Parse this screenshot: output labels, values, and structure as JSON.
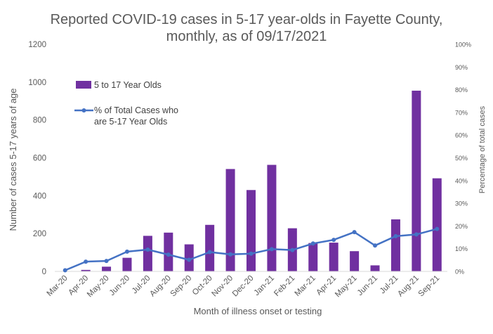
{
  "chart_data": {
    "type": "bar",
    "title_line1": "Reported COVID-19 cases in 5-17 year-olds in Fayette County,",
    "title_line2": "monthly, as of 09/17/2021",
    "xlabel": "Month of illness onset or testing",
    "ylabel": "Number of cases 5-17 years of age",
    "y2label": "Percentage of total cases",
    "categories": [
      "Mar-20",
      "Apr-20",
      "May-20",
      "Jun-20",
      "Jul-20",
      "Aug-20",
      "Sep-20",
      "Oct-20",
      "Nov-20",
      "Dec-20",
      "Jan-21",
      "Feb-21",
      "Mar-21",
      "Apr-21",
      "May-21",
      "Jun-21",
      "Jul-21",
      "Aug-21",
      "Sep-21"
    ],
    "ylim": [
      0,
      1200
    ],
    "yticks": [
      "0",
      "200",
      "400",
      "600",
      "800",
      "1000",
      "1200"
    ],
    "y2lim": [
      0,
      100
    ],
    "y2ticks": [
      "0%",
      "10%",
      "20%",
      "30%",
      "40%",
      "50%",
      "60%",
      "70%",
      "80%",
      "90%",
      "100%"
    ],
    "legend_position": "upper-left",
    "series": [
      {
        "name": "5 to 17 Year Olds",
        "type": "bar",
        "axis": "left",
        "color": "#7030a0",
        "values": [
          0,
          8,
          25,
          72,
          188,
          205,
          143,
          246,
          541,
          430,
          563,
          228,
          150,
          152,
          107,
          32,
          275,
          955,
          492
        ]
      },
      {
        "name": "% of Total Cases who are 5-17 Year Olds",
        "name_line1": "% of Total Cases who",
        "name_line2": "are 5-17 Year Olds",
        "type": "line",
        "axis": "right",
        "color": "#4472c4",
        "values": [
          0.5,
          4.3,
          4.6,
          8.7,
          9.6,
          7.4,
          5.1,
          8.5,
          7.5,
          7.8,
          9.8,
          9.4,
          12.3,
          13.9,
          17.3,
          11.4,
          15.5,
          16.3,
          18.7
        ]
      }
    ]
  }
}
